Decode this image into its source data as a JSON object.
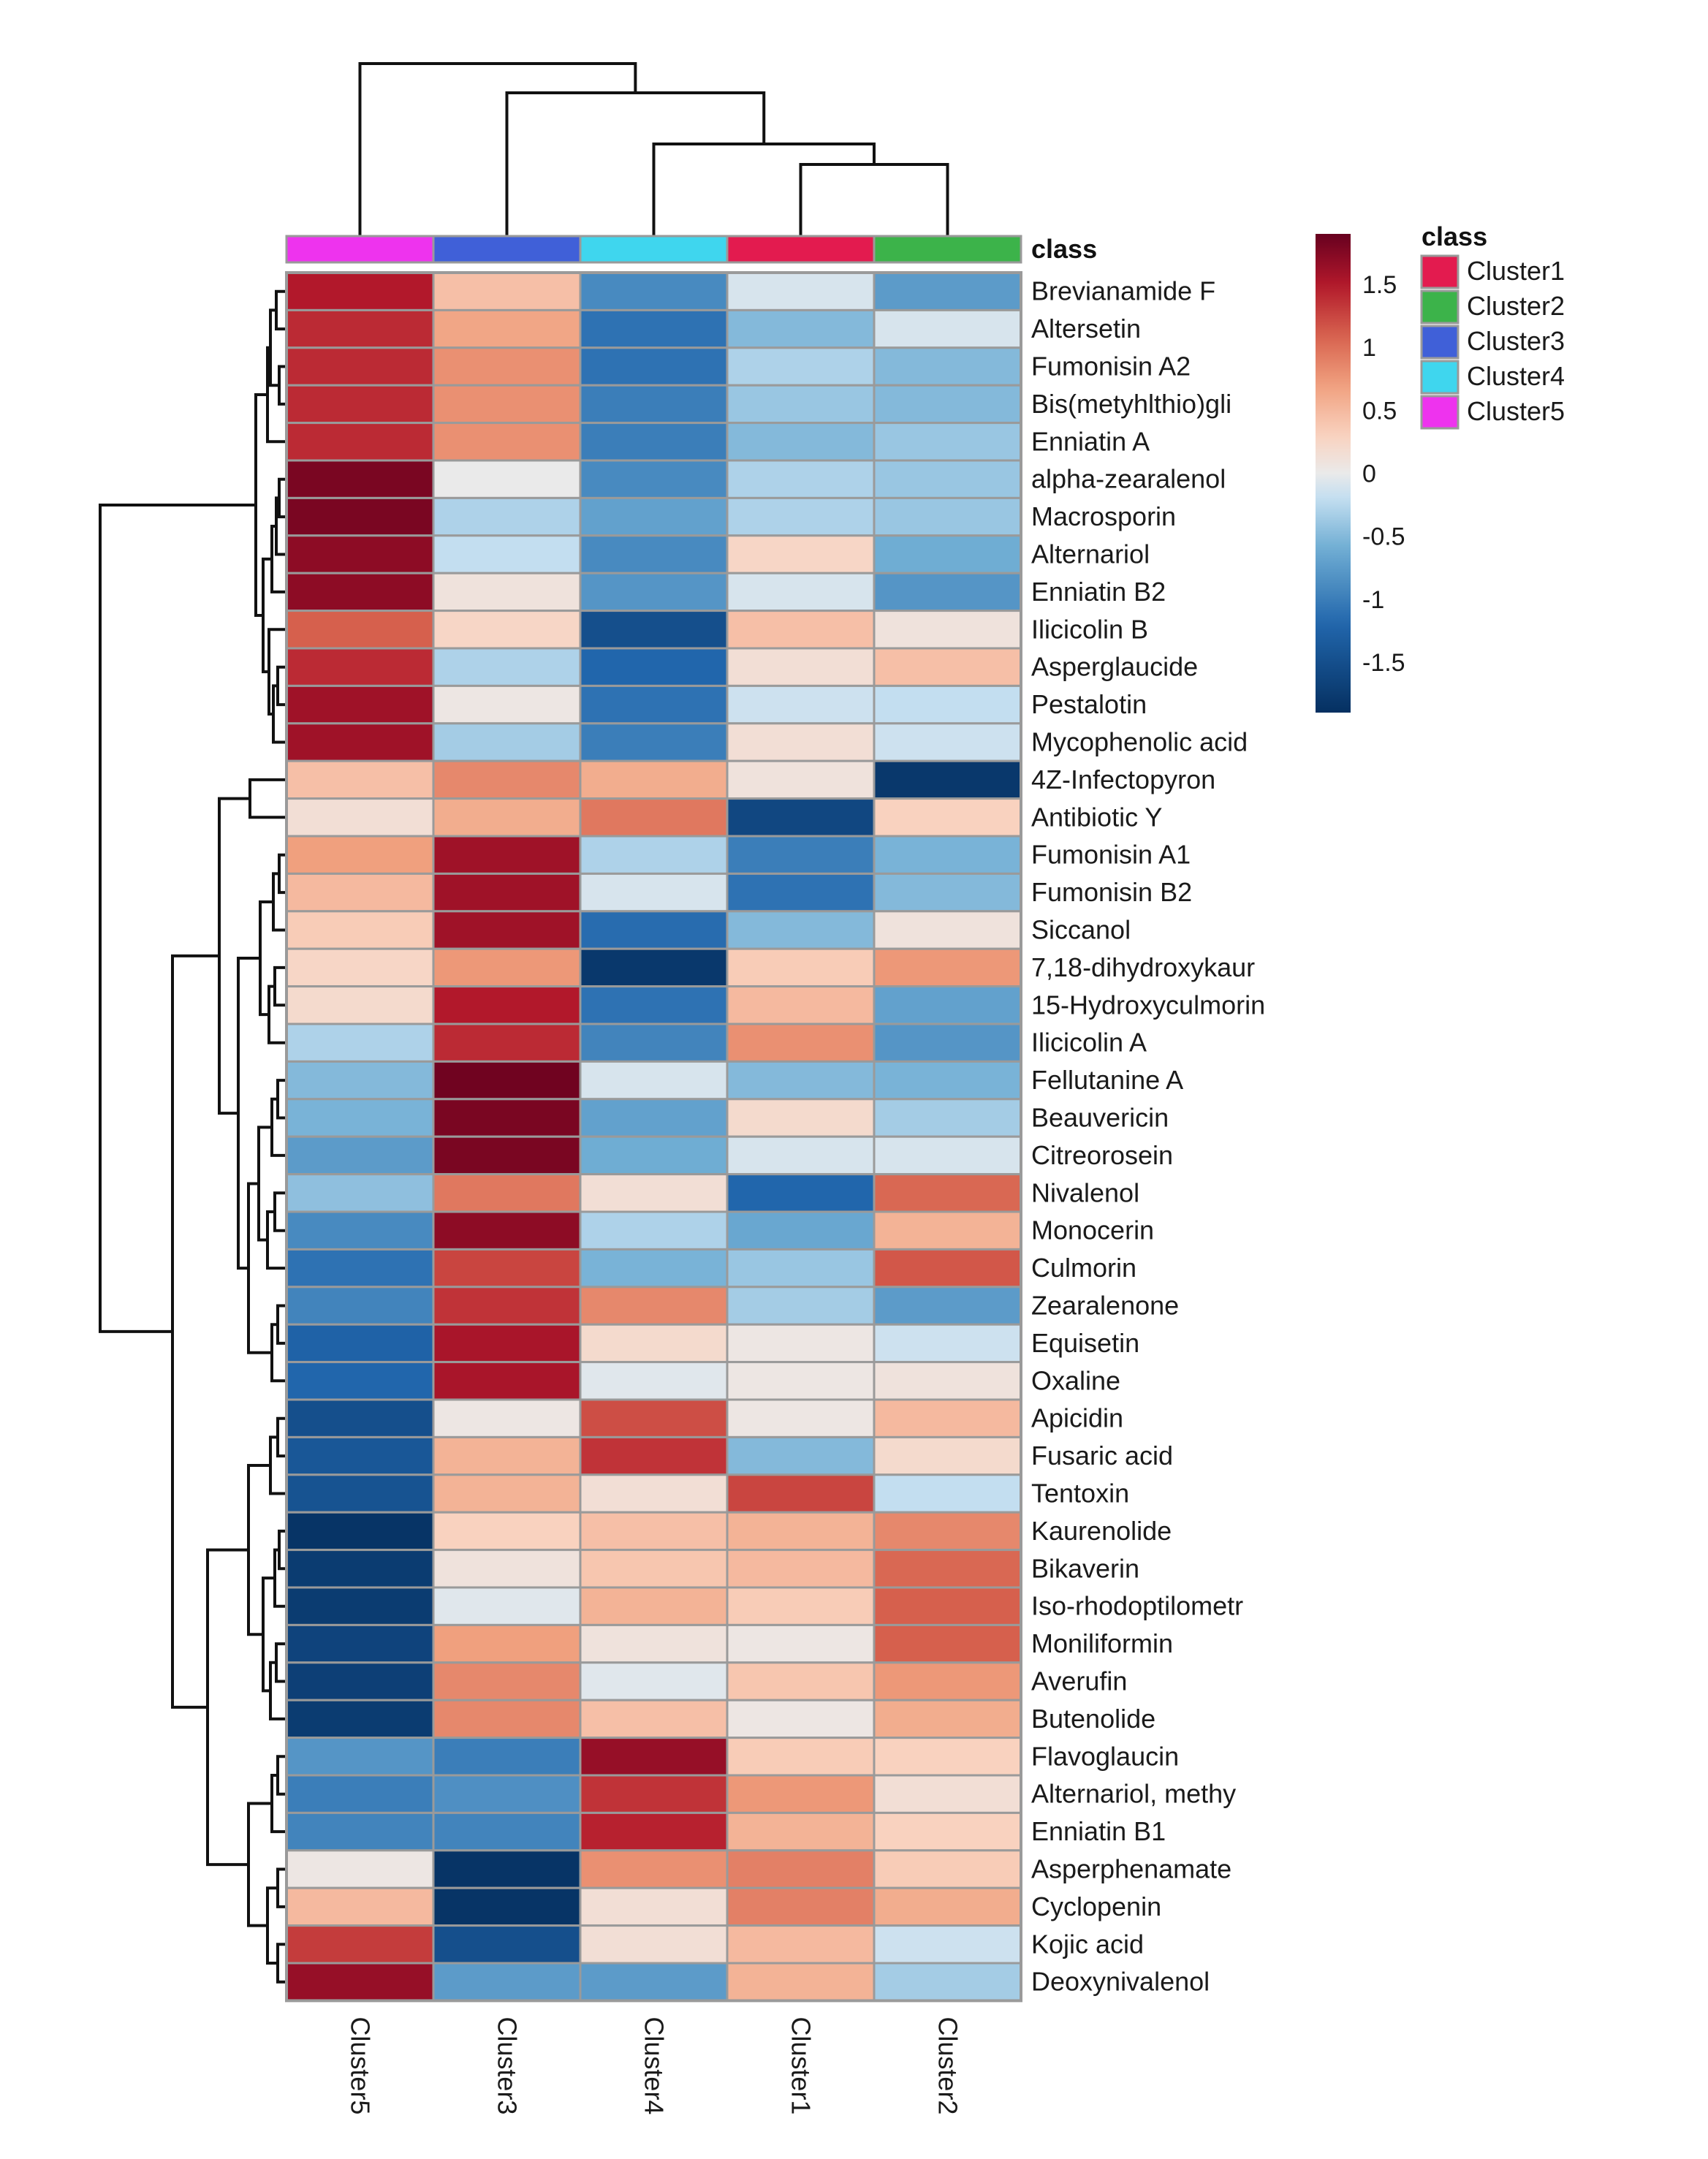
{
  "chart_data": {
    "type": "heatmap",
    "annotation_title": "class",
    "columns": [
      "Cluster5",
      "Cluster3",
      "Cluster4",
      "Cluster1",
      "Cluster2"
    ],
    "column_classes": [
      "Cluster5",
      "Cluster3",
      "Cluster4",
      "Cluster1",
      "Cluster2"
    ],
    "rows": [
      "Brevianamide F",
      "Altersetin",
      "Fumonisin A2",
      "Bis(metyhlthio)gli",
      "Enniatin A",
      "alpha-zearalenol",
      "Macrosporin",
      "Alternariol",
      "Enniatin B2",
      "Ilicicolin B",
      "Asperglaucide",
      "Pestalotin",
      "Mycophenolic acid",
      "4Z-Infectopyron",
      "Antibiotic Y",
      "Fumonisin A1",
      "Fumonisin B2",
      "Siccanol",
      "7,18-dihydroxykaur",
      "15-Hydroxyculmorin",
      "Ilicicolin A",
      "Fellutanine A",
      "Beauvericin",
      "Citreorosein",
      "Nivalenol",
      "Monocerin",
      "Culmorin",
      "Zearalenone",
      "Equisetin",
      "Oxaline",
      "Apicidin",
      "Fusaric acid",
      "Tentoxin",
      "Kaurenolide",
      "Bikaverin",
      "Iso-rhodoptilometr",
      "Moniliformin",
      "Averufin",
      "Butenolide",
      "Flavoglaucin",
      "Alternariol, methy",
      "Enniatin B1",
      "Asperphenamate",
      "Cyclopenin",
      "Kojic acid",
      "Deoxynivalenol"
    ],
    "values": [
      [
        1.5,
        0.45,
        -0.9,
        -0.1,
        -0.75
      ],
      [
        1.4,
        0.65,
        -1.1,
        -0.5,
        -0.1
      ],
      [
        1.4,
        0.8,
        -1.1,
        -0.3,
        -0.5
      ],
      [
        1.4,
        0.8,
        -1.0,
        -0.4,
        -0.5
      ],
      [
        1.4,
        0.8,
        -1.0,
        -0.5,
        -0.4
      ],
      [
        1.8,
        0.0,
        -0.9,
        -0.3,
        -0.4
      ],
      [
        1.8,
        -0.3,
        -0.7,
        -0.3,
        -0.4
      ],
      [
        1.7,
        -0.2,
        -0.9,
        0.25,
        -0.6
      ],
      [
        1.7,
        0.1,
        -0.8,
        -0.1,
        -0.8
      ],
      [
        1.1,
        0.25,
        -1.5,
        0.45,
        0.1
      ],
      [
        1.4,
        -0.3,
        -1.2,
        0.15,
        0.45
      ],
      [
        1.6,
        0.05,
        -1.1,
        -0.15,
        -0.2
      ],
      [
        1.6,
        -0.35,
        -1.0,
        0.15,
        -0.15
      ],
      [
        0.45,
        0.85,
        0.6,
        0.1,
        -1.8
      ],
      [
        0.15,
        0.6,
        0.95,
        -1.6,
        0.3
      ],
      [
        0.7,
        1.6,
        -0.3,
        -1.0,
        -0.55
      ],
      [
        0.5,
        1.6,
        -0.1,
        -1.1,
        -0.5
      ],
      [
        0.35,
        1.6,
        -1.15,
        -0.5,
        0.1
      ],
      [
        0.25,
        0.75,
        -1.8,
        0.35,
        0.75
      ],
      [
        0.2,
        1.5,
        -1.1,
        0.5,
        -0.7
      ],
      [
        -0.3,
        1.4,
        -0.95,
        0.8,
        -0.8
      ],
      [
        -0.5,
        1.85,
        -0.1,
        -0.5,
        -0.55
      ],
      [
        -0.55,
        1.8,
        -0.7,
        0.2,
        -0.35
      ],
      [
        -0.75,
        1.8,
        -0.6,
        -0.1,
        -0.1
      ],
      [
        -0.45,
        0.95,
        0.15,
        -1.2,
        1.05
      ],
      [
        -0.9,
        1.7,
        -0.3,
        -0.65,
        0.55
      ],
      [
        -1.1,
        1.25,
        -0.55,
        -0.4,
        1.15
      ],
      [
        -0.95,
        1.35,
        0.85,
        -0.35,
        -0.75
      ],
      [
        -1.25,
        1.55,
        0.2,
        0.05,
        -0.15
      ],
      [
        -1.2,
        1.55,
        -0.05,
        0.05,
        0.1
      ],
      [
        -1.5,
        0.05,
        1.2,
        0.05,
        0.5
      ],
      [
        -1.4,
        0.55,
        1.35,
        -0.5,
        0.2
      ],
      [
        -1.45,
        0.55,
        0.15,
        1.25,
        -0.2
      ],
      [
        -1.85,
        0.3,
        0.45,
        0.55,
        0.85
      ],
      [
        -1.75,
        0.1,
        0.4,
        0.5,
        1.05
      ],
      [
        -1.75,
        -0.05,
        0.55,
        0.35,
        1.1
      ],
      [
        -1.65,
        0.7,
        0.1,
        0.05,
        1.1
      ],
      [
        -1.7,
        0.85,
        -0.05,
        0.4,
        0.75
      ],
      [
        -1.75,
        0.85,
        0.45,
        0.05,
        0.6
      ],
      [
        -0.8,
        -1.0,
        1.65,
        0.35,
        0.3
      ],
      [
        -1.0,
        -0.85,
        1.35,
        0.75,
        0.15
      ],
      [
        -0.95,
        -0.95,
        1.45,
        0.55,
        0.3
      ],
      [
        0.05,
        -1.85,
        0.8,
        0.9,
        0.35
      ],
      [
        0.5,
        -1.85,
        0.15,
        0.9,
        0.6
      ],
      [
        1.3,
        -1.5,
        0.15,
        0.5,
        -0.15
      ],
      [
        1.65,
        -0.75,
        -0.75,
        0.55,
        -0.35
      ]
    ],
    "color_scale": {
      "ticks": [
        "1.5",
        "1",
        "0.5",
        "0",
        "-0.5",
        "-1",
        "-1.5"
      ],
      "tick_values": [
        1.5,
        1,
        0.5,
        0,
        -0.5,
        -1,
        -1.5
      ],
      "min": -1.9,
      "max": 1.9,
      "stops": [
        {
          "v": -1.9,
          "c": "#053061"
        },
        {
          "v": -1.2,
          "c": "#2166ac"
        },
        {
          "v": -0.6,
          "c": "#6fadd3"
        },
        {
          "v": -0.2,
          "c": "#c3def0"
        },
        {
          "v": 0.0,
          "c": "#eaeaea"
        },
        {
          "v": 0.3,
          "c": "#f9d2bf"
        },
        {
          "v": 0.7,
          "c": "#f0a07e"
        },
        {
          "v": 1.1,
          "c": "#d6604d"
        },
        {
          "v": 1.5,
          "c": "#b2182b"
        },
        {
          "v": 1.9,
          "c": "#67001f"
        }
      ]
    },
    "legend": {
      "title": "class",
      "placement": "top-right",
      "items": [
        {
          "label": "Cluster1",
          "color": "#e31b4f"
        },
        {
          "label": "Cluster2",
          "color": "#3cb34a"
        },
        {
          "label": "Cluster3",
          "color": "#4060d8"
        },
        {
          "label": "Cluster4",
          "color": "#3fd6ee"
        },
        {
          "label": "Cluster5",
          "color": "#ee33ee"
        }
      ]
    },
    "cell_border_color": "#9a9a9a"
  }
}
